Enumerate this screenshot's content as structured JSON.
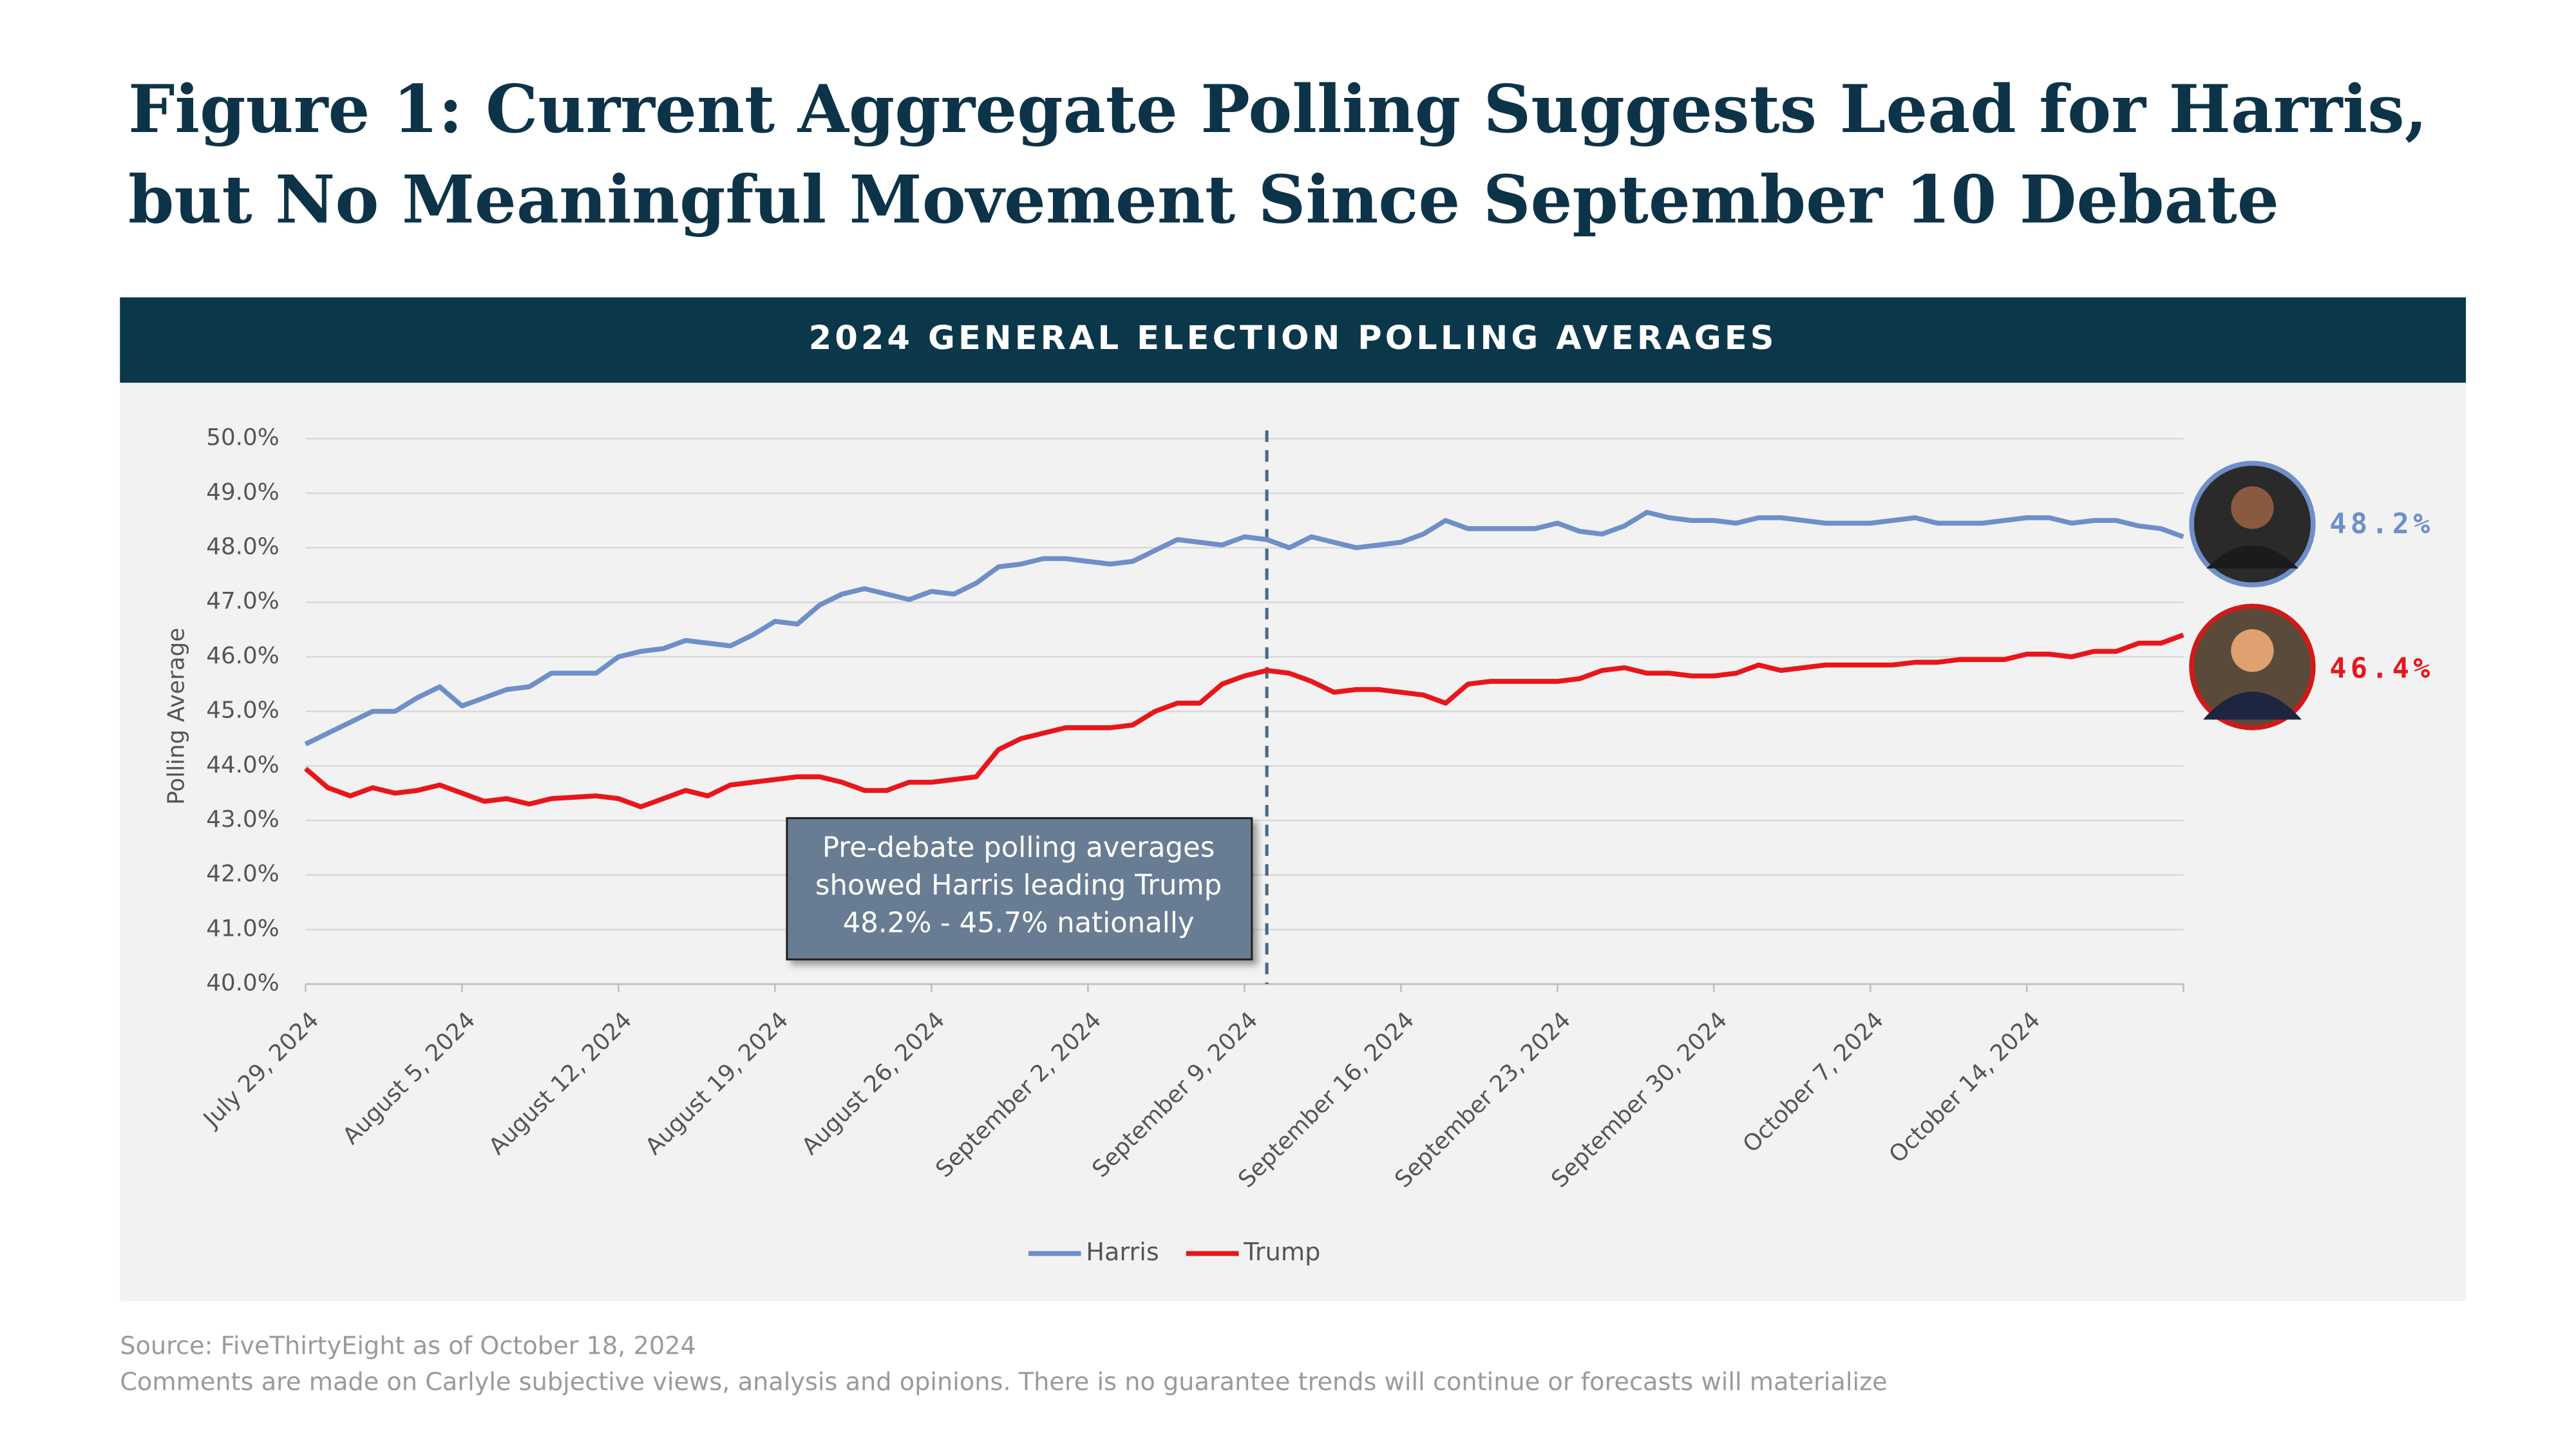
{
  "title": [
    "Figure 1: Current Aggregate Polling Suggests Lead for Harris,",
    "but No Meaningful Movement Since September 10 Debate"
  ],
  "chart_data": {
    "type": "line",
    "title": "2024 GENERAL ELECTION POLLING AVERAGES",
    "y_label": "Polling Average",
    "x": [
      "2024-07-29",
      "2024-07-30",
      "2024-07-31",
      "2024-08-01",
      "2024-08-02",
      "2024-08-03",
      "2024-08-04",
      "2024-08-05",
      "2024-08-06",
      "2024-08-07",
      "2024-08-08",
      "2024-08-09",
      "2024-08-11",
      "2024-08-12",
      "2024-08-13",
      "2024-08-14",
      "2024-08-15",
      "2024-08-16",
      "2024-08-17",
      "2024-08-18",
      "2024-08-19",
      "2024-08-20",
      "2024-08-21",
      "2024-08-22",
      "2024-08-23",
      "2024-08-24",
      "2024-08-25",
      "2024-08-26",
      "2024-08-27",
      "2024-08-28",
      "2024-08-29",
      "2024-08-30",
      "2024-08-31",
      "2024-09-01",
      "2024-09-02",
      "2024-09-03",
      "2024-09-04",
      "2024-09-05",
      "2024-09-06",
      "2024-09-07",
      "2024-09-08",
      "2024-09-09",
      "2024-09-10",
      "2024-09-11",
      "2024-09-12",
      "2024-09-13",
      "2024-09-14",
      "2024-09-15",
      "2024-09-16",
      "2024-09-17",
      "2024-09-18",
      "2024-09-19",
      "2024-09-20",
      "2024-09-22",
      "2024-09-23",
      "2024-09-24",
      "2024-09-25",
      "2024-09-26",
      "2024-09-27",
      "2024-09-28",
      "2024-09-29",
      "2024-09-30",
      "2024-10-01",
      "2024-10-02",
      "2024-10-03",
      "2024-10-04",
      "2024-10-05",
      "2024-10-06",
      "2024-10-07",
      "2024-10-08",
      "2024-10-09",
      "2024-10-10",
      "2024-10-11",
      "2024-10-12",
      "2024-10-13",
      "2024-10-14",
      "2024-10-15",
      "2024-10-16",
      "2024-10-17",
      "2024-10-18",
      "2024-10-19",
      "2024-10-20",
      "2024-10-21"
    ],
    "series": [
      {
        "name": "Harris",
        "color": "#6e8fc8",
        "values": [
          44.4,
          44.6,
          44.8,
          45.0,
          45.0,
          45.25,
          45.45,
          45.1,
          45.25,
          45.4,
          45.45,
          45.7,
          45.7,
          46.0,
          46.1,
          46.15,
          46.3,
          46.25,
          46.2,
          46.4,
          46.65,
          46.6,
          46.95,
          47.15,
          47.25,
          47.15,
          47.05,
          47.2,
          47.15,
          47.35,
          47.65,
          47.7,
          47.8,
          47.8,
          47.75,
          47.7,
          47.75,
          47.95,
          48.15,
          48.1,
          48.05,
          48.2,
          48.15,
          48.0,
          48.2,
          48.1,
          48.0,
          48.05,
          48.1,
          48.25,
          48.5,
          48.35,
          48.35,
          48.35,
          48.45,
          48.3,
          48.25,
          48.4,
          48.65,
          48.55,
          48.5,
          48.5,
          48.45,
          48.55,
          48.55,
          48.5,
          48.45,
          48.45,
          48.45,
          48.5,
          48.55,
          48.45,
          48.45,
          48.45,
          48.5,
          48.55,
          48.55,
          48.45,
          48.5,
          48.5,
          48.4,
          48.35,
          48.2
        ],
        "value_labels": [
          null,
          null,
          null,
          null,
          null,
          null,
          null,
          null,
          null,
          null,
          null,
          null,
          null,
          null,
          null,
          null,
          null,
          null,
          null,
          null,
          null,
          null,
          null,
          null,
          null,
          null,
          null,
          null,
          null,
          null,
          null,
          null,
          null,
          null,
          null,
          null,
          null,
          null,
          null,
          null,
          null,
          null,
          null,
          null,
          null,
          null,
          null,
          null,
          null,
          null,
          null,
          null,
          null,
          null,
          null,
          null,
          null,
          null,
          null,
          null,
          null,
          null,
          null,
          null,
          null,
          null,
          null,
          null,
          null,
          null,
          null,
          null,
          null,
          null,
          null,
          null,
          null,
          null,
          null,
          null,
          null,
          null,
          "48.2%"
        ]
      },
      {
        "name": "Trump",
        "color": "#e8161b",
        "values": [
          43.95,
          43.6,
          43.45,
          43.6,
          43.5,
          43.55,
          43.65,
          43.5,
          43.35,
          43.4,
          43.3,
          43.4,
          43.45,
          43.4,
          43.25,
          43.4,
          43.55,
          43.45,
          43.65,
          43.7,
          43.75,
          43.8,
          43.8,
          43.7,
          43.55,
          43.55,
          43.7,
          43.7,
          43.75,
          43.8,
          44.3,
          44.5,
          44.6,
          44.7,
          44.7,
          44.7,
          44.75,
          45.0,
          45.15,
          45.15,
          45.5,
          45.65,
          45.75,
          45.7,
          45.55,
          45.35,
          45.4,
          45.4,
          45.35,
          45.3,
          45.15,
          45.5,
          45.55,
          45.55,
          45.55,
          45.6,
          45.75,
          45.8,
          45.7,
          45.7,
          45.65,
          45.65,
          45.7,
          45.85,
          45.75,
          45.8,
          45.85,
          45.85,
          45.85,
          45.85,
          45.9,
          45.9,
          45.95,
          45.95,
          45.95,
          46.05,
          46.05,
          46.0,
          46.1,
          46.1,
          46.25,
          46.25,
          46.4
        ],
        "value_labels": [
          null,
          null,
          null,
          null,
          null,
          null,
          null,
          null,
          null,
          null,
          null,
          null,
          null,
          null,
          null,
          null,
          null,
          null,
          null,
          null,
          null,
          null,
          null,
          null,
          null,
          null,
          null,
          null,
          null,
          null,
          null,
          null,
          null,
          null,
          null,
          null,
          null,
          null,
          null,
          null,
          null,
          null,
          null,
          null,
          null,
          null,
          null,
          null,
          null,
          null,
          null,
          null,
          null,
          null,
          null,
          null,
          null,
          null,
          null,
          null,
          null,
          null,
          null,
          null,
          null,
          null,
          null,
          null,
          null,
          null,
          null,
          null,
          null,
          null,
          null,
          null,
          null,
          null,
          null,
          null,
          null,
          null,
          "46.4%"
        ]
      }
    ],
    "xlim": [
      "2024-07-29",
      "2024-10-21"
    ],
    "xticks": [
      {
        "value": "2024-07-29",
        "label": "July 29, 2024"
      },
      {
        "value": "2024-08-05",
        "label": "August 5, 2024"
      },
      {
        "value": "2024-08-12",
        "label": "August 12, 2024"
      },
      {
        "value": "2024-08-19",
        "label": "August 19, 2024"
      },
      {
        "value": "2024-08-26",
        "label": "August 26, 2024"
      },
      {
        "value": "2024-09-02",
        "label": "September 2, 2024"
      },
      {
        "value": "2024-09-09",
        "label": "September 9, 2024"
      },
      {
        "value": "2024-09-16",
        "label": "September 16, 2024"
      },
      {
        "value": "2024-09-23",
        "label": "September 23, 2024"
      },
      {
        "value": "2024-09-30",
        "label": "September 30, 2024"
      },
      {
        "value": "2024-10-07",
        "label": "October 7, 2024"
      },
      {
        "value": "2024-10-14",
        "label": "October 14, 2024"
      }
    ],
    "ylim": [
      40,
      50
    ],
    "yticks": [
      {
        "value": 40,
        "label": "40.0%"
      },
      {
        "value": 41,
        "label": "41.0%"
      },
      {
        "value": 42,
        "label": "42.0%"
      },
      {
        "value": 43,
        "label": "43.0%"
      },
      {
        "value": 44,
        "label": "44.0%"
      },
      {
        "value": 45,
        "label": "45.0%"
      },
      {
        "value": 46,
        "label": "46.0%"
      },
      {
        "value": 47,
        "label": "47.0%"
      },
      {
        "value": 48,
        "label": "48.0%"
      },
      {
        "value": 49,
        "label": "49.0%"
      },
      {
        "value": 50,
        "label": "50.0%"
      }
    ],
    "grid": true,
    "legend": "bottom",
    "reference_line": {
      "x": "2024-09-10"
    },
    "annotation": [
      "Pre-debate polling averages",
      "showed Harris leading Trump",
      "48.2% - 45.7% nationally"
    ]
  },
  "source": "Source: FiveThirtyEight as of October 18, 2024",
  "note": "Comments are made on Carlyle subjective views, analysis and opinions. There is no guarantee trends will continue or forecasts will materialize"
}
